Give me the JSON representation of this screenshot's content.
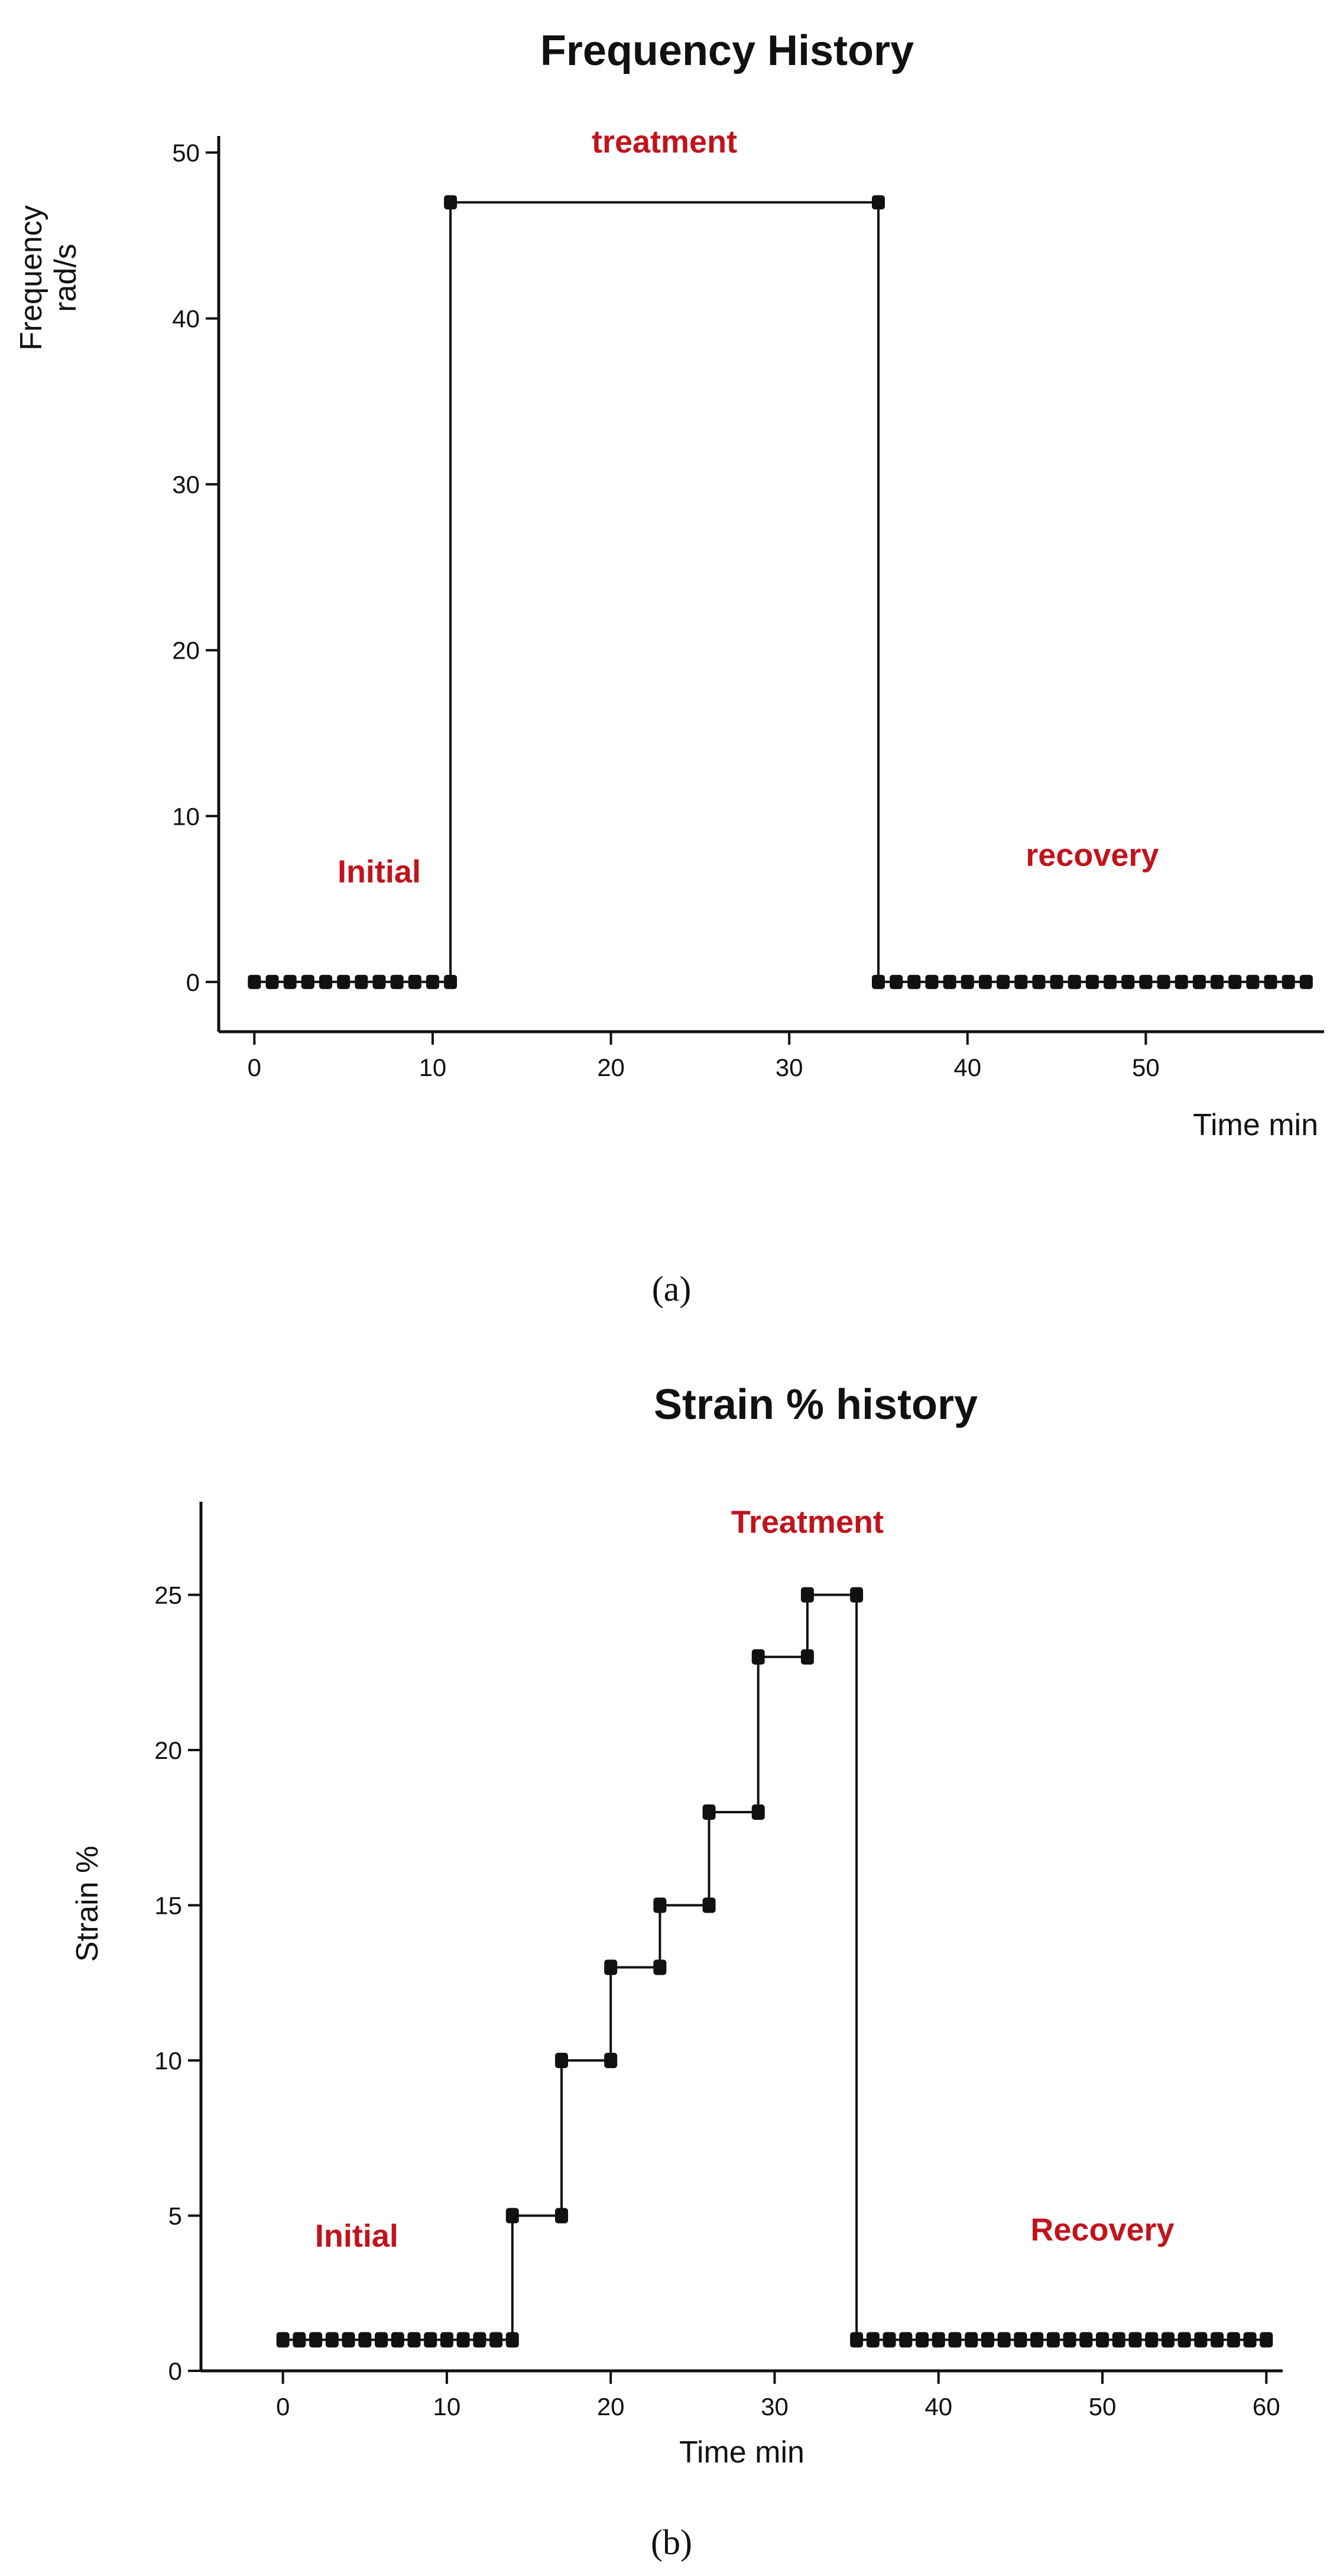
{
  "chart_data": [
    {
      "type": "line",
      "title": "Frequency History",
      "xlabel": "Time min",
      "ylabel": [
        "Frequency",
        "rad/s"
      ],
      "xlim": [
        -2,
        60
      ],
      "ylim": [
        -3,
        51
      ],
      "x_ticks": [
        "0",
        "10",
        "20",
        "30",
        "40",
        "50"
      ],
      "y_ticks": [
        "0",
        "10",
        "20",
        "30",
        "40",
        "50"
      ],
      "phase_labels": [
        {
          "text": "Initial",
          "x": 7,
          "y": 6
        },
        {
          "text": "treatment",
          "x": 23,
          "y": 50
        },
        {
          "text": "recovery",
          "x": 47,
          "y": 7
        }
      ],
      "caption": "(a)",
      "series": [
        {
          "points": [
            [
              0,
              0
            ],
            [
              1,
              0
            ],
            [
              2,
              0
            ],
            [
              3,
              0
            ],
            [
              4,
              0
            ],
            [
              5,
              0
            ],
            [
              6,
              0
            ],
            [
              7,
              0
            ],
            [
              8,
              0
            ],
            [
              9,
              0
            ],
            [
              10,
              0
            ],
            [
              11,
              0
            ],
            [
              11,
              47
            ],
            [
              35,
              47
            ],
            [
              35,
              0
            ],
            [
              36,
              0
            ],
            [
              37,
              0
            ],
            [
              38,
              0
            ],
            [
              39,
              0
            ],
            [
              40,
              0
            ],
            [
              41,
              0
            ],
            [
              42,
              0
            ],
            [
              43,
              0
            ],
            [
              44,
              0
            ],
            [
              45,
              0
            ],
            [
              46,
              0
            ],
            [
              47,
              0
            ],
            [
              48,
              0
            ],
            [
              49,
              0
            ],
            [
              50,
              0
            ],
            [
              51,
              0
            ],
            [
              52,
              0
            ],
            [
              53,
              0
            ],
            [
              54,
              0
            ],
            [
              55,
              0
            ],
            [
              56,
              0
            ],
            [
              57,
              0
            ],
            [
              58,
              0
            ],
            [
              59,
              0
            ]
          ]
        }
      ]
    },
    {
      "type": "line",
      "title": "Strain % history",
      "xlabel": "Time min",
      "ylabel": "Strain %",
      "xlim": [
        -5,
        61
      ],
      "ylim": [
        0,
        28
      ],
      "x_ticks": [
        "0",
        "10",
        "20",
        "30",
        "40",
        "50",
        "60"
      ],
      "y_ticks": [
        "0",
        "5",
        "10",
        "15",
        "20",
        "25"
      ],
      "phase_labels": [
        {
          "text": "Initial",
          "x": 4.5,
          "y": 4
        },
        {
          "text": "Treatment",
          "x": 32,
          "y": 27
        },
        {
          "text": "Recovery",
          "x": 50,
          "y": 4.2
        }
      ],
      "caption": "(b)",
      "series": [
        {
          "points": [
            [
              0,
              1
            ],
            [
              1,
              1
            ],
            [
              2,
              1
            ],
            [
              3,
              1
            ],
            [
              4,
              1
            ],
            [
              5,
              1
            ],
            [
              6,
              1
            ],
            [
              7,
              1
            ],
            [
              8,
              1
            ],
            [
              9,
              1
            ],
            [
              10,
              1
            ],
            [
              11,
              1
            ],
            [
              12,
              1
            ],
            [
              13,
              1
            ],
            [
              14,
              1
            ],
            [
              14,
              5
            ],
            [
              17,
              5
            ],
            [
              17,
              10
            ],
            [
              20,
              10
            ],
            [
              20,
              13
            ],
            [
              23,
              13
            ],
            [
              23,
              15
            ],
            [
              26,
              15
            ],
            [
              26,
              18
            ],
            [
              29,
              18
            ],
            [
              29,
              23
            ],
            [
              32,
              23
            ],
            [
              32,
              25
            ],
            [
              35,
              25
            ],
            [
              35,
              1
            ],
            [
              36,
              1
            ],
            [
              37,
              1
            ],
            [
              38,
              1
            ],
            [
              39,
              1
            ],
            [
              40,
              1
            ],
            [
              41,
              1
            ],
            [
              42,
              1
            ],
            [
              43,
              1
            ],
            [
              44,
              1
            ],
            [
              45,
              1
            ],
            [
              46,
              1
            ],
            [
              47,
              1
            ],
            [
              48,
              1
            ],
            [
              49,
              1
            ],
            [
              50,
              1
            ],
            [
              51,
              1
            ],
            [
              52,
              1
            ],
            [
              53,
              1
            ],
            [
              54,
              1
            ],
            [
              55,
              1
            ],
            [
              56,
              1
            ],
            [
              57,
              1
            ],
            [
              58,
              1
            ],
            [
              59,
              1
            ],
            [
              60,
              1
            ]
          ]
        }
      ]
    }
  ]
}
